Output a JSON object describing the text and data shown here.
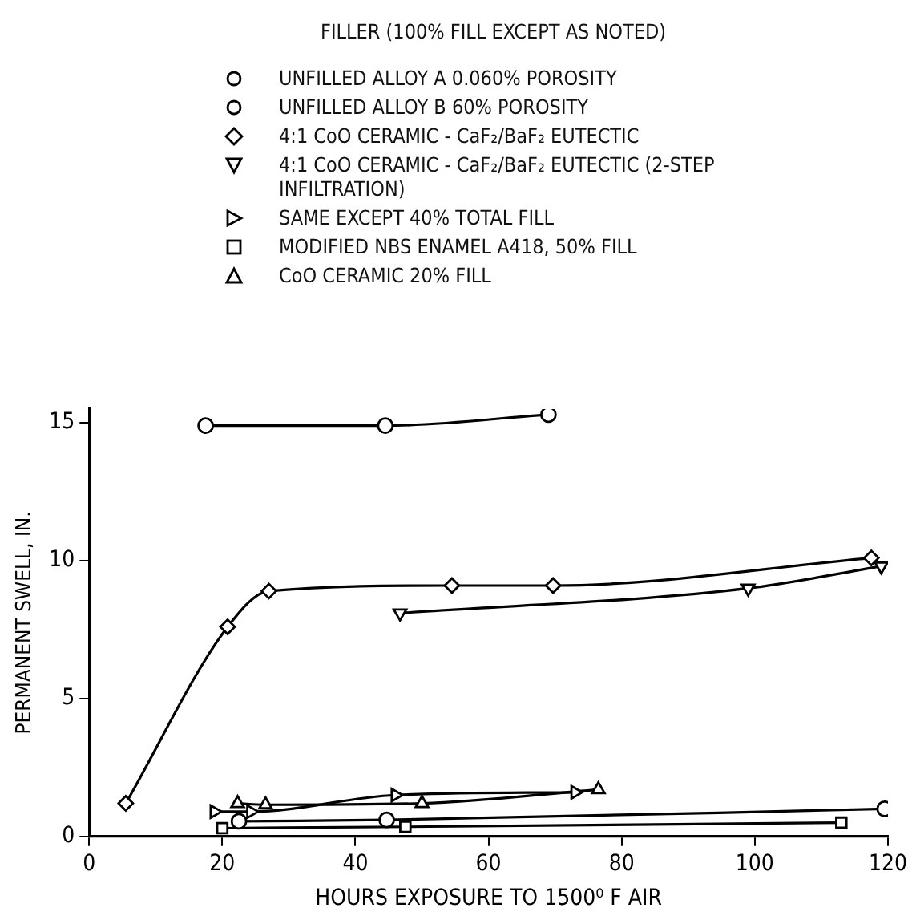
{
  "chart_data": {
    "type": "line",
    "legend_title": "FILLER (100% FILL EXCEPT AS NOTED)",
    "xlabel": "HOURS EXPOSURE TO 1500⁰ F AIR",
    "ylabel": "PERMANENT SWELL, IN.",
    "xlim": [
      0,
      120
    ],
    "xticks": [
      0,
      20,
      40,
      60,
      80,
      100,
      120
    ],
    "ylim": [
      0,
      15.5
    ],
    "yticks": [
      0,
      5,
      10,
      15
    ],
    "grid": false,
    "legend": "top",
    "line_style": "solid",
    "series": [
      {
        "name": "UNFILLED ALLOY A 0.060% POROSITY",
        "color": "#000000",
        "marker": "circle",
        "x": [
          22.5,
          44.7,
          119.5
        ],
        "values": [
          0.55,
          0.6,
          1.0
        ]
      },
      {
        "name": "UNFILLED ALLOY B 60% POROSITY",
        "color": "#000000",
        "marker": "circle",
        "x": [
          17.5,
          44.5,
          69
        ],
        "values": [
          14.9,
          14.9,
          15.3
        ]
      },
      {
        "name": "4:1 CoO CERAMIC - CaF₂/BaF₂ EUTECTIC",
        "color": "#000000",
        "marker": "diamond",
        "x": [
          5.5,
          20.8,
          27,
          54.5,
          69.7,
          117.5
        ],
        "values": [
          1.2,
          7.6,
          8.9,
          9.1,
          9.1,
          10.1
        ]
      },
      {
        "name": "4:1 CoO CERAMIC - CaF₂/BaF₂ EUTECTIC (2-STEP INFILTRATION)",
        "color": "#000000",
        "marker": "triangle-down",
        "x": [
          46.7,
          99,
          119
        ],
        "values": [
          8.1,
          9.0,
          9.8
        ]
      },
      {
        "name": "SAME EXCEPT 40% TOTAL FILL",
        "color": "#000000",
        "marker": "triangle-right",
        "x": [
          18.8,
          24.3,
          46,
          73
        ],
        "values": [
          0.9,
          0.9,
          1.5,
          1.6
        ]
      },
      {
        "name": "MODIFIED NBS ENAMEL A418, 50% FILL",
        "color": "#000000",
        "marker": "square",
        "x": [
          20,
          47.5,
          113
        ],
        "values": [
          0.3,
          0.35,
          0.5
        ]
      },
      {
        "name": "CoO CERAMIC 20% FILL",
        "color": "#000000",
        "marker": "triangle",
        "x": [
          22.3,
          26.5,
          50,
          76.5
        ],
        "values": [
          1.2,
          1.15,
          1.2,
          1.7
        ]
      }
    ]
  }
}
